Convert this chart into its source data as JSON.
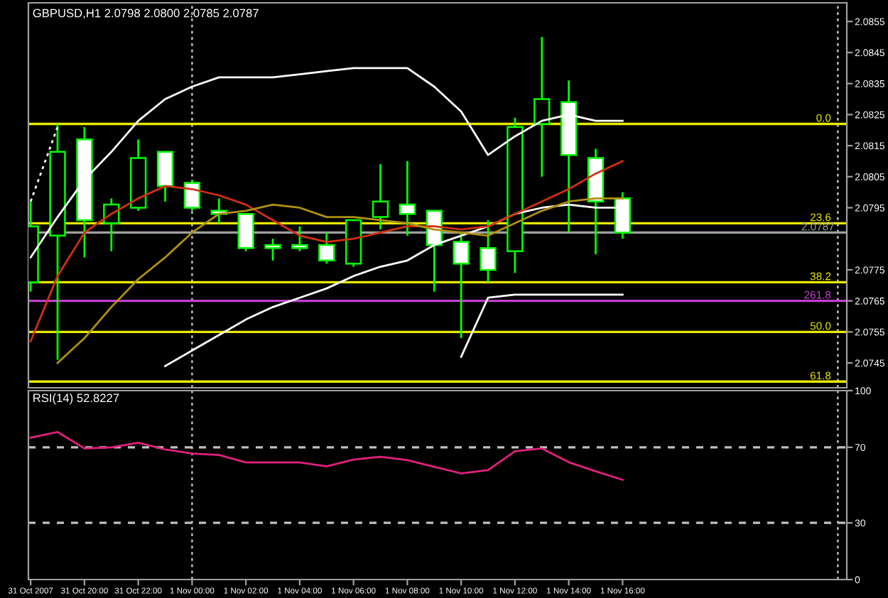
{
  "chart_data": [
    {
      "type": "candlestick",
      "title": "GBPUSD,H1 2.0798 2.0800 2.0785 2.0787",
      "x": [
        "2007-10-31T18:00",
        "2007-10-31T19:00",
        "2007-10-31T20:00",
        "2007-10-31T21:00",
        "2007-10-31T22:00",
        "2007-10-31T23:00",
        "2007-11-01T00:00",
        "2007-11-01T01:00",
        "2007-11-01T02:00",
        "2007-11-01T03:00",
        "2007-11-01T04:00",
        "2007-11-01T05:00",
        "2007-11-01T06:00",
        "2007-11-01T07:00",
        "2007-11-01T08:00",
        "2007-11-01T09:00",
        "2007-11-01T10:00",
        "2007-11-01T11:00",
        "2007-11-01T12:00",
        "2007-11-01T13:00",
        "2007-11-01T14:00",
        "2007-11-01T15:00",
        "2007-11-01T16:00"
      ],
      "ohlc": [
        [
          2.0771,
          2.0797,
          2.0768,
          2.0789
        ],
        [
          2.0786,
          2.0822,
          2.0746,
          2.0813
        ],
        [
          2.0817,
          2.0821,
          2.0779,
          2.0791
        ],
        [
          2.079,
          2.0798,
          2.0781,
          2.0796
        ],
        [
          2.0795,
          2.0817,
          2.0794,
          2.0811
        ],
        [
          2.0813,
          2.0813,
          2.0797,
          2.0802
        ],
        [
          2.0803,
          2.0804,
          2.0794,
          2.0795
        ],
        [
          2.0794,
          2.0798,
          2.079,
          2.0793
        ],
        [
          2.0793,
          2.0793,
          2.0781,
          2.0782
        ],
        [
          2.0783,
          2.0785,
          2.0778,
          2.0782
        ],
        [
          2.0783,
          2.0789,
          2.0781,
          2.0782
        ],
        [
          2.0783,
          2.0787,
          2.0777,
          2.0778
        ],
        [
          2.0777,
          2.0791,
          2.0776,
          2.0791
        ],
        [
          2.0792,
          2.0809,
          2.0788,
          2.0797
        ],
        [
          2.0796,
          2.081,
          2.0786,
          2.0793
        ],
        [
          2.0794,
          2.0794,
          2.0768,
          2.0783
        ],
        [
          2.0784,
          2.0787,
          2.0753,
          2.0777
        ],
        [
          2.0782,
          2.0791,
          2.0771,
          2.0775
        ],
        [
          2.0781,
          2.0824,
          2.0774,
          2.0821
        ],
        [
          2.0822,
          2.085,
          2.0805,
          2.083
        ],
        [
          2.0829,
          2.0836,
          2.0787,
          2.0812
        ],
        [
          2.0811,
          2.0814,
          2.078,
          2.0797
        ],
        [
          2.0798,
          2.08,
          2.0785,
          2.0787
        ]
      ],
      "series": [
        {
          "type": "line",
          "color": "#ffffff",
          "line_style": "solid",
          "values": [
            2.0779,
            2.0792,
            2.0804,
            2.0813,
            2.0823,
            2.083,
            2.0834,
            2.0837,
            2.0837,
            2.0837,
            2.0838,
            2.0839,
            2.084,
            2.084,
            2.084,
            2.0834,
            2.0826,
            2.0812,
            2.0818,
            2.0823,
            2.0825,
            2.0823,
            2.0823
          ]
        },
        {
          "type": "line",
          "color": "#ffffff",
          "line_style": "dotted",
          "values": [
            2.0797,
            2.0821,
            null,
            null,
            null,
            null,
            null,
            null,
            null,
            null,
            null,
            null,
            null,
            null,
            null,
            null,
            null,
            null,
            null,
            null,
            null,
            null,
            null
          ]
        },
        {
          "type": "line",
          "color": "#ffffff",
          "line_style": "solid",
          "values": [
            null,
            null,
            null,
            null,
            null,
            2.0744,
            2.0749,
            2.0754,
            2.0759,
            2.0763,
            2.0766,
            2.0769,
            2.0773,
            2.0776,
            2.0778,
            2.0783,
            2.0786,
            2.0789,
            2.0793,
            2.0795,
            2.0796,
            2.0795,
            2.0795
          ]
        },
        {
          "type": "line",
          "color": "#ffffff",
          "line_style": "solid",
          "values": [
            null,
            null,
            null,
            null,
            null,
            null,
            null,
            null,
            null,
            null,
            null,
            null,
            null,
            null,
            null,
            null,
            2.0747,
            2.0766,
            2.0767,
            2.0767,
            2.0767,
            2.0767,
            2.0767
          ]
        },
        {
          "type": "line",
          "color": "#d03010",
          "line_style": "solid",
          "values": [
            2.0752,
            2.0773,
            2.0787,
            2.0793,
            2.0798,
            2.0802,
            2.0801,
            2.0799,
            2.0796,
            2.0791,
            2.0786,
            2.0784,
            2.0785,
            2.0787,
            2.0789,
            2.0789,
            2.0788,
            2.0789,
            2.0793,
            2.0797,
            2.0801,
            2.0806,
            2.081
          ]
        },
        {
          "type": "line",
          "color": "#b09010",
          "line_style": "solid",
          "values": [
            null,
            2.0745,
            2.0753,
            2.0763,
            2.0772,
            2.0779,
            2.0787,
            2.0793,
            2.0794,
            2.0796,
            2.0795,
            2.0792,
            2.0792,
            2.0791,
            2.079,
            2.0788,
            2.0787,
            2.0786,
            2.079,
            2.0794,
            2.0797,
            2.0798,
            2.0798
          ]
        }
      ],
      "ref_lines": [
        {
          "axis": "y",
          "value": 2.0822,
          "color": "#e8e800"
        },
        {
          "axis": "y",
          "value": 2.079,
          "color": "#e8e800"
        },
        {
          "axis": "y",
          "value": 2.0771,
          "color": "#e8e800"
        },
        {
          "axis": "y",
          "value": 2.0765,
          "color": "#c040d0"
        },
        {
          "axis": "y",
          "value": 2.0755,
          "color": "#e8e800"
        },
        {
          "axis": "y",
          "value": 2.0739,
          "color": "#e8e800"
        },
        {
          "axis": "y",
          "value": 2.0787,
          "label": "2.0787",
          "color": "#a0a0a0"
        },
        {
          "axis": "x",
          "value": "2007-11-01T00:00",
          "color": "#c0c0c0",
          "line_style": "dotted"
        },
        {
          "axis": "x",
          "value": "2007-11-02T00:00",
          "color": "#c0c0c0",
          "line_style": "dotted"
        }
      ],
      "annotations": [
        {
          "text": "0.0",
          "x": "2007-11-01T23:45",
          "y": 2.0822
        },
        {
          "text": "23.6",
          "x": "2007-11-01T23:45",
          "y": 2.079
        },
        {
          "text": "38.2",
          "x": "2007-11-01T23:45",
          "y": 2.0771
        },
        {
          "text": "261.8",
          "x": "2007-11-01T23:45",
          "y": 2.0765
        },
        {
          "text": "50.0",
          "x": "2007-11-01T23:45",
          "y": 2.0755
        },
        {
          "text": "61.8",
          "x": "2007-11-01T23:45",
          "y": 2.0739
        }
      ],
      "xlim": [
        "2007-10-31T17:55",
        "2007-11-02T00:20"
      ],
      "ylim": [
        2.0737,
        2.0861
      ],
      "yticks": [
        2.0745,
        2.0755,
        2.0765,
        2.0775,
        2.0795,
        2.0805,
        2.0815,
        2.0825,
        2.0835,
        2.0845,
        2.0855
      ],
      "tick_labels": "y",
      "grid": false,
      "legend": false
    },
    {
      "type": "line",
      "title": "RSI(14) 52.8227",
      "x": [
        "2007-10-31T18:00",
        "2007-10-31T19:00",
        "2007-10-31T20:00",
        "2007-10-31T21:00",
        "2007-10-31T22:00",
        "2007-10-31T23:00",
        "2007-11-01T00:00",
        "2007-11-01T01:00",
        "2007-11-01T02:00",
        "2007-11-01T03:00",
        "2007-11-01T04:00",
        "2007-11-01T05:00",
        "2007-11-01T06:00",
        "2007-11-01T07:00",
        "2007-11-01T08:00",
        "2007-11-01T09:00",
        "2007-11-01T10:00",
        "2007-11-01T11:00",
        "2007-11-01T12:00",
        "2007-11-01T13:00",
        "2007-11-01T14:00",
        "2007-11-01T15:00",
        "2007-11-01T16:00"
      ],
      "series": [
        {
          "color": "#e0207a",
          "values": [
            75.1,
            78.1,
            69.4,
            70.0,
            72.4,
            68.8,
            66.7,
            65.9,
            62.0,
            62.0,
            62.0,
            59.9,
            63.5,
            65.0,
            63.2,
            59.6,
            56.2,
            57.9,
            67.9,
            69.4,
            62.1,
            57.3,
            52.8
          ]
        }
      ],
      "ref_lines": [
        {
          "axis": "y",
          "value": 30,
          "color": "#c0c0c0",
          "line_style": "dashed"
        },
        {
          "axis": "y",
          "value": 70,
          "color": "#c0c0c0",
          "line_style": "dashed"
        },
        {
          "axis": "x",
          "value": "2007-11-01T00:00",
          "color": "#c0c0c0",
          "line_style": "dotted"
        },
        {
          "axis": "x",
          "value": "2007-11-02T00:00",
          "color": "#c0c0c0",
          "line_style": "dotted"
        }
      ],
      "xlim": [
        "2007-10-31T17:55",
        "2007-11-02T00:20"
      ],
      "xticks": [
        {
          "value": "2007-10-31T18:00",
          "label": "31 Oct 2007"
        },
        {
          "value": "2007-10-31T20:00",
          "label": "31 Oct 20:00"
        },
        {
          "value": "2007-10-31T22:00",
          "label": "31 Oct 22:00"
        },
        {
          "value": "2007-11-01T00:00",
          "label": "1 Nov 00:00"
        },
        {
          "value": "2007-11-01T02:00",
          "label": "1 Nov 02:00"
        },
        {
          "value": "2007-11-01T04:00",
          "label": "1 Nov 04:00"
        },
        {
          "value": "2007-11-01T06:00",
          "label": "1 Nov 06:00"
        },
        {
          "value": "2007-11-01T08:00",
          "label": "1 Nov 08:00"
        },
        {
          "value": "2007-11-01T10:00",
          "label": "1 Nov 10:00"
        },
        {
          "value": "2007-11-01T12:00",
          "label": "1 Nov 12:00"
        },
        {
          "value": "2007-11-01T14:00",
          "label": "1 Nov 14:00"
        },
        {
          "value": "2007-11-01T16:00",
          "label": "1 Nov 16:00"
        }
      ],
      "ylim": [
        0,
        100
      ],
      "yticks": [
        0,
        30,
        70,
        100
      ],
      "grid": false,
      "legend": false
    }
  ]
}
